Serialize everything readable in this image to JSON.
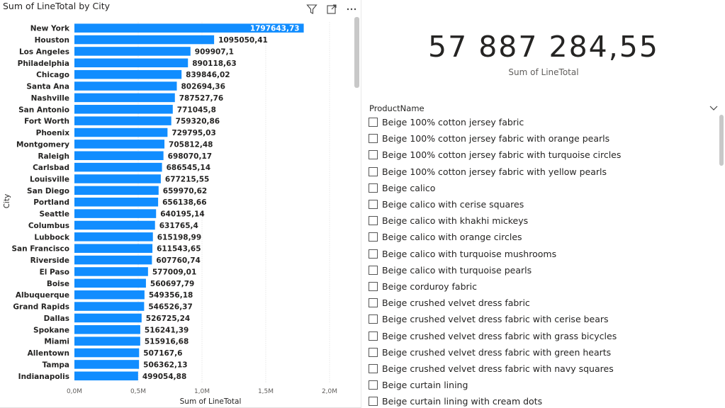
{
  "chart_data": {
    "type": "bar",
    "orientation": "horizontal",
    "title": "Sum of LineTotal by City",
    "xlabel": "Sum of LineTotal",
    "ylabel": "City",
    "xlim": [
      0,
      2000000
    ],
    "xticks": [
      "0,0M",
      "0,5M",
      "1,0M",
      "1,5M",
      "2,0M"
    ],
    "xtick_values": [
      0,
      500000,
      1000000,
      1500000,
      2000000
    ],
    "grid": true,
    "bar_color": "#118dff",
    "categories": [
      "New York",
      "Houston",
      "Los Angeles",
      "Philadelphia",
      "Chicago",
      "Santa Ana",
      "Nashville",
      "San Antonio",
      "Fort Worth",
      "Phoenix",
      "Montgomery",
      "Raleigh",
      "Carlsbad",
      "Louisville",
      "San Diego",
      "Portland",
      "Seattle",
      "Columbus",
      "Lubbock",
      "San Francisco",
      "Riverside",
      "El Paso",
      "Boise",
      "Albuquerque",
      "Grand Rapids",
      "Dallas",
      "Spokane",
      "Miami",
      "Allentown",
      "Tampa",
      "Indianapolis"
    ],
    "values": [
      1797643.73,
      1095050.41,
      909907.1,
      890118.63,
      839846.02,
      802694.36,
      787527.76,
      771045.8,
      759320.86,
      729795.03,
      705812.48,
      698070.17,
      686545.14,
      677215.55,
      659970.62,
      656138.66,
      640195.14,
      631765.4,
      615198.99,
      611543.65,
      607760.74,
      577009.01,
      560697.79,
      549356.18,
      546526.37,
      526725.24,
      516241.39,
      515916.68,
      507167.6,
      506362.13,
      499054.88
    ],
    "value_labels": [
      "1797643,73",
      "1095050,41",
      "909907,1",
      "890118,63",
      "839846,02",
      "802694,36",
      "787527,76",
      "771045,8",
      "759320,86",
      "729795,03",
      "705812,48",
      "698070,17",
      "686545,14",
      "677215,55",
      "659970,62",
      "656138,66",
      "640195,14",
      "631765,4",
      "615198,99",
      "611543,65",
      "607760,74",
      "577009,01",
      "560697,79",
      "549356,18",
      "546526,37",
      "526725,24",
      "516241,39",
      "515916,68",
      "507167,6",
      "506362,13",
      "499054,88"
    ]
  },
  "card": {
    "value": "57 887 284,55",
    "label": "Sum of LineTotal"
  },
  "slicer": {
    "header": "ProductName",
    "items": [
      "Beige 100% cotton jersey fabric",
      "Beige 100% cotton jersey fabric with orange pearls",
      "Beige 100% cotton jersey fabric with turquoise circles",
      "Beige 100% cotton jersey fabric with yellow pearls",
      "Beige calico",
      "Beige calico with cerise squares",
      "Beige calico with khakhi mickeys",
      "Beige calico with orange circles",
      "Beige calico with turquoise mushrooms",
      "Beige calico with turquoise pearls",
      "Beige corduroy fabric",
      "Beige crushed velvet dress fabric",
      "Beige crushed velvet dress fabric with cerise bears",
      "Beige crushed velvet dress fabric with grass bicycles",
      "Beige crushed velvet dress fabric with green hearts",
      "Beige crushed velvet dress fabric with navy squares",
      "Beige curtain lining",
      "Beige curtain lining with cream dots"
    ]
  },
  "icons": {
    "filter": "filter-icon",
    "focus": "focus-mode-icon",
    "more": "more-options-icon",
    "chevron": "chevron-down-icon"
  }
}
